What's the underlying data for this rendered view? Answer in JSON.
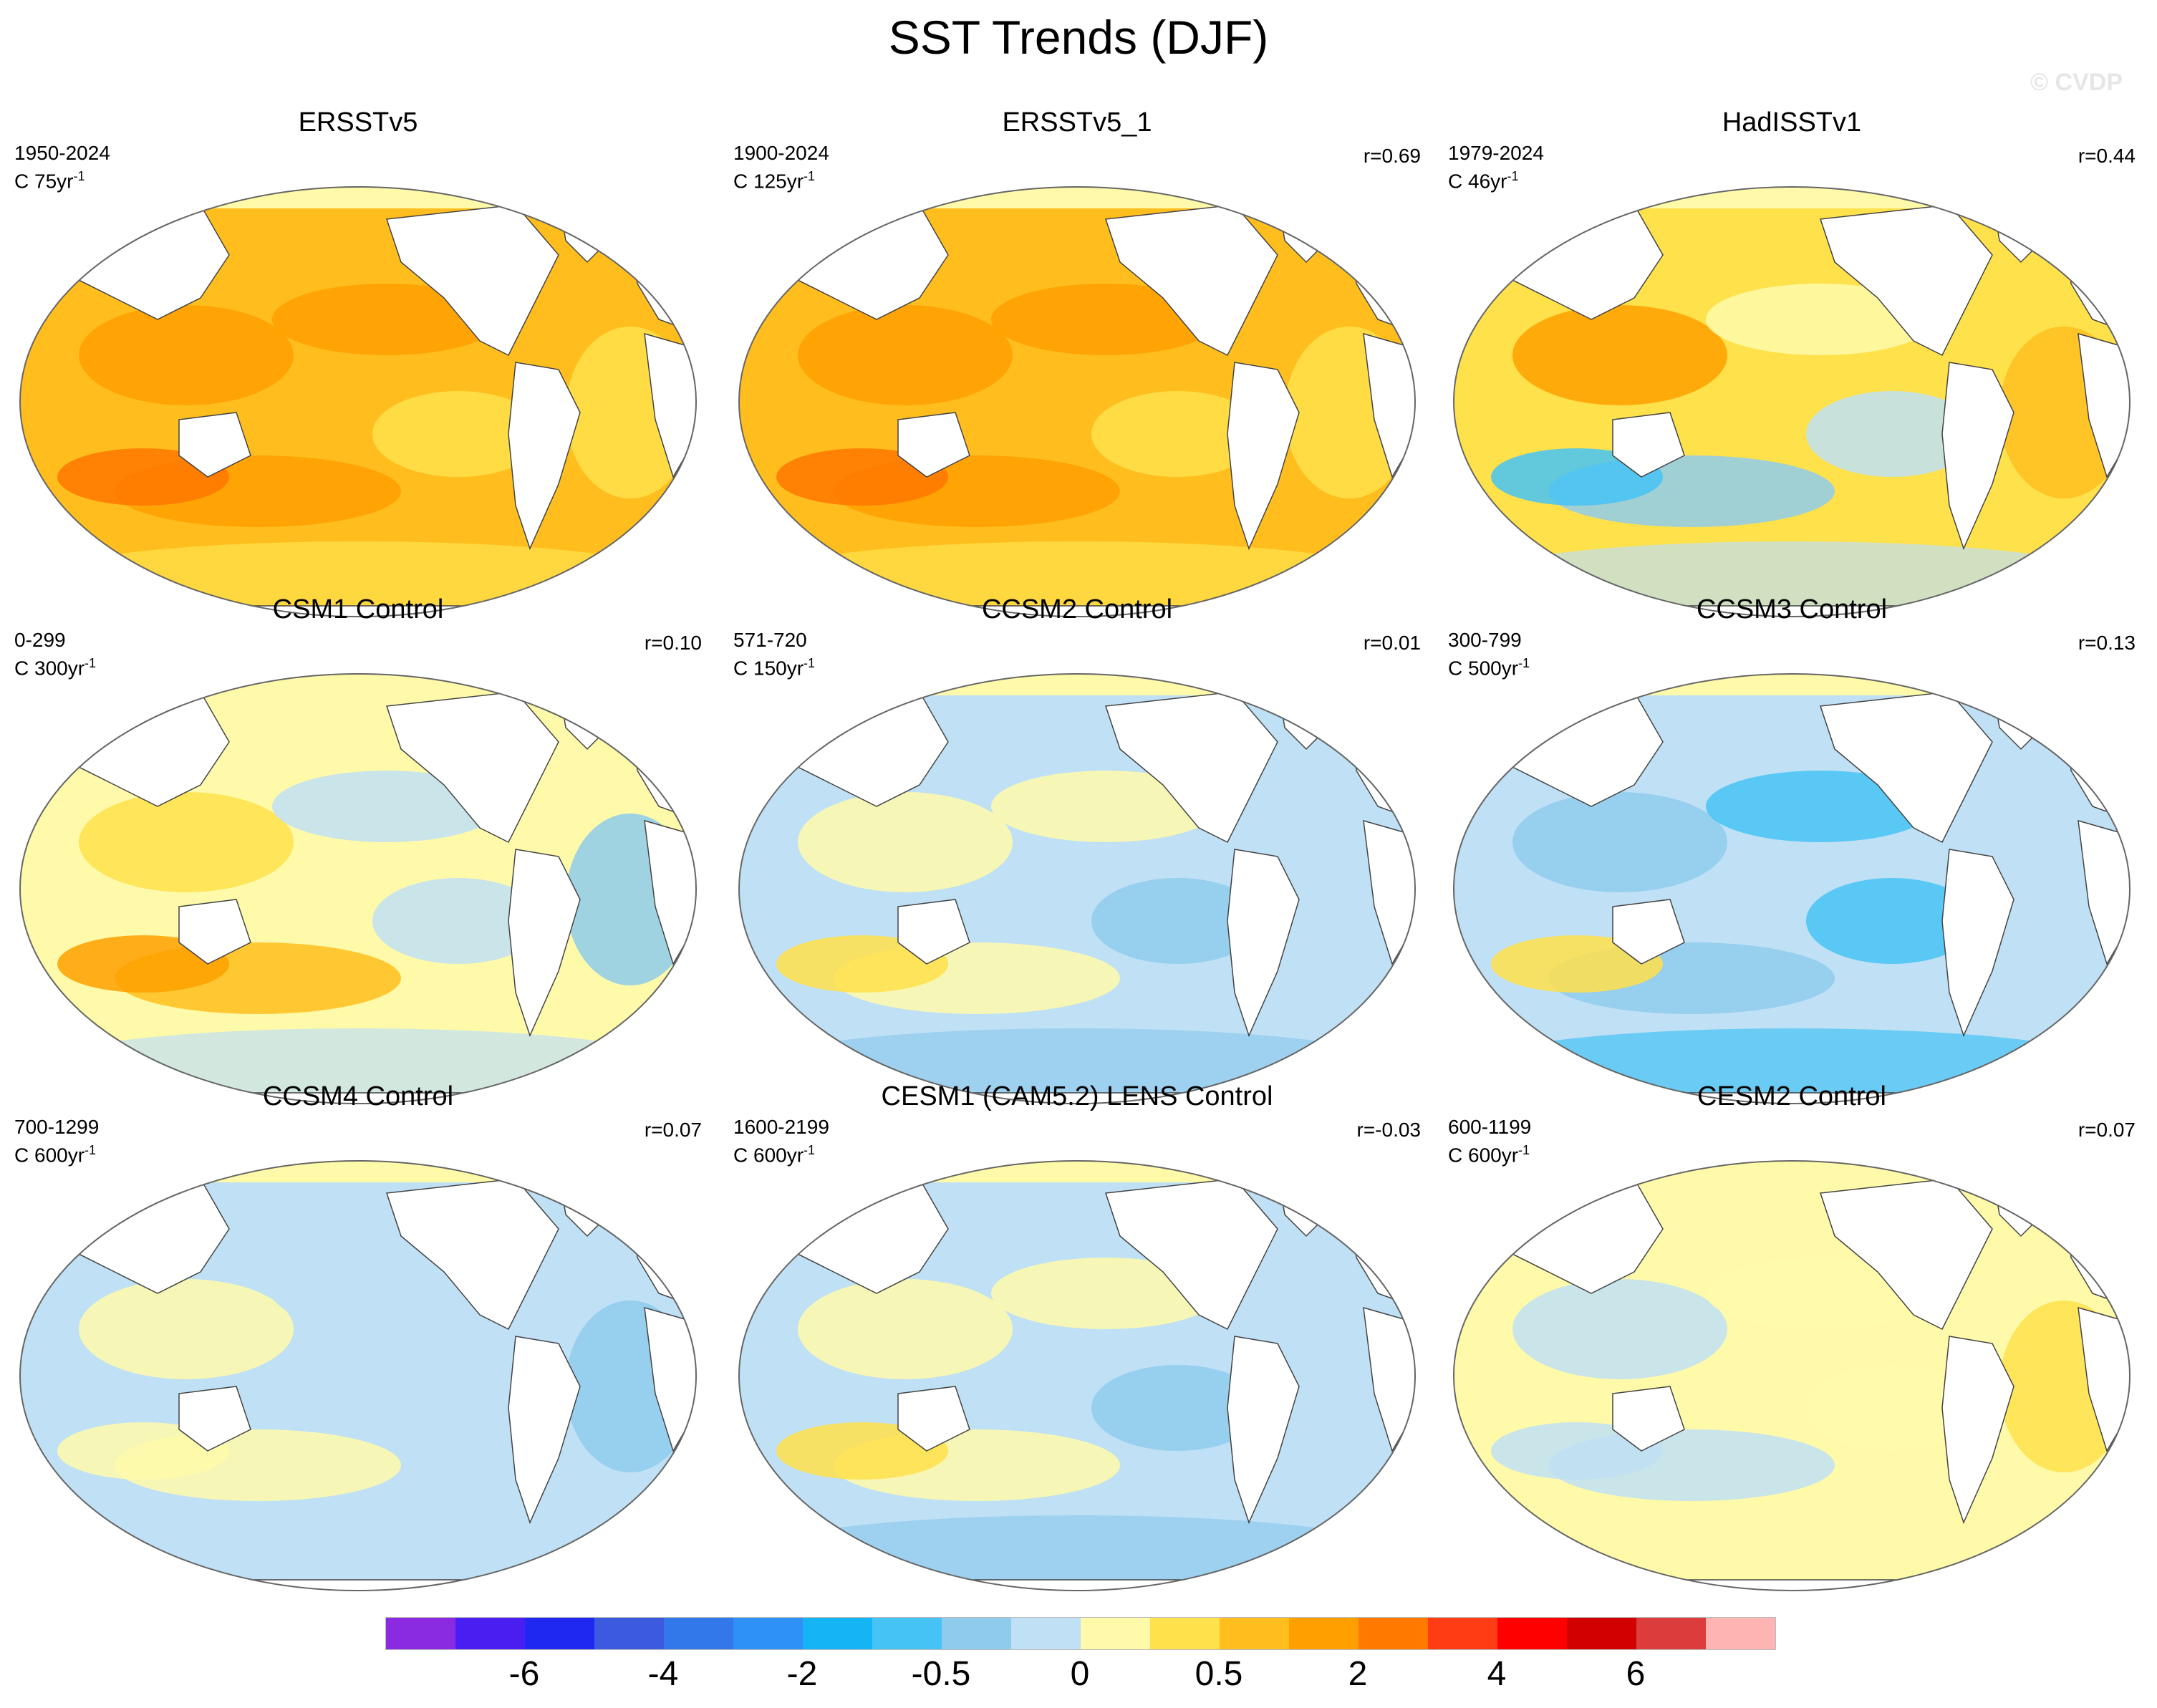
{
  "title": "SST Trends (DJF)",
  "watermark": "© CVDP",
  "panels": [
    {
      "title": "ERSSTv5",
      "period": "1950-2024",
      "scale_value": "C 75yr",
      "scale_exp": "-1",
      "r": "",
      "style": "warm"
    },
    {
      "title": "ERSSTv5_1",
      "period": "1900-2024",
      "scale_value": "C 125yr",
      "scale_exp": "-1",
      "r": "r=0.69",
      "style": "warm"
    },
    {
      "title": "HadISSTv1",
      "period": "1979-2024",
      "scale_value": "C 46yr",
      "scale_exp": "-1",
      "r": "r=0.44",
      "style": "hadisst"
    },
    {
      "title": "CSM1 Control",
      "period": "0-299",
      "scale_value": "C 300yr",
      "scale_exp": "-1",
      "r": "r=0.10",
      "style": "mixed-warm"
    },
    {
      "title": "CCSM2 Control",
      "period": "571-720",
      "scale_value": "C 150yr",
      "scale_exp": "-1",
      "r": "r=0.01",
      "style": "mixed"
    },
    {
      "title": "CCSM3 Control",
      "period": "300-799",
      "scale_value": "C 500yr",
      "scale_exp": "-1",
      "r": "r=0.13",
      "style": "cool"
    },
    {
      "title": "CCSM4 Control",
      "period": "700-1299",
      "scale_value": "C 600yr",
      "scale_exp": "-1",
      "r": "r=0.07",
      "style": "cool-light"
    },
    {
      "title": "CESM1 (CAM5.2) LENS Control",
      "period": "1600-2199",
      "scale_value": "C 600yr",
      "scale_exp": "-1",
      "r": "r=-0.03",
      "style": "mixed"
    },
    {
      "title": "CESM2 Control",
      "period": "600-1199",
      "scale_value": "C 600yr",
      "scale_exp": "-1",
      "r": "r=0.07",
      "style": "warm-light"
    }
  ],
  "colorbar": {
    "colors": [
      "#8a2be2",
      "#4a1ef0",
      "#1e28f0",
      "#3c5ae0",
      "#3278ea",
      "#2d91f5",
      "#14b4f5",
      "#46c3f5",
      "#8fcbec",
      "#bfe0f5",
      "#fffaaa",
      "#ffe14b",
      "#ffbe1e",
      "#ffa000",
      "#ff7800",
      "#ff3c14",
      "#ff0000",
      "#d20000",
      "#dc3c3c",
      "#ffb4b4"
    ],
    "tick_labels": [
      "-6",
      "-4",
      "-2",
      "-0.5",
      "0",
      "0.5",
      "2",
      "4",
      "6"
    ],
    "tick_boundaries": [
      2,
      4,
      6,
      8,
      10,
      12,
      14,
      16,
      18
    ]
  }
}
